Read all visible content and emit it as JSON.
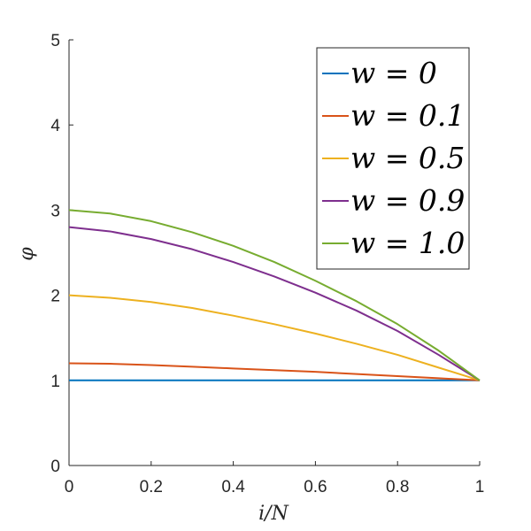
{
  "chart_data": {
    "type": "line",
    "xlabel": "i/N",
    "ylabel": "φ",
    "xlim": [
      0,
      1
    ],
    "ylim": [
      0,
      5
    ],
    "xticks": [
      0,
      0.2,
      0.4,
      0.6,
      0.8,
      1
    ],
    "yticks": [
      0,
      1,
      2,
      3,
      4,
      5
    ],
    "xtick_labels": [
      "0",
      "0.2",
      "0.4",
      "0.6",
      "0.8",
      "1"
    ],
    "ytick_labels": [
      "0",
      "1",
      "2",
      "3",
      "4",
      "5"
    ],
    "grid": false,
    "legend_position": "top-right",
    "x": [
      0,
      0.1,
      0.2,
      0.3,
      0.4,
      0.5,
      0.6,
      0.7,
      0.8,
      0.9,
      1.0
    ],
    "series": [
      {
        "name": "w = 0",
        "color": "#0072BD",
        "values": [
          1.0,
          1.0,
          1.0,
          1.0,
          1.0,
          1.0,
          1.0,
          1.0,
          1.0,
          1.0,
          1.0
        ]
      },
      {
        "name": "w = 0.1",
        "color": "#D95319",
        "values": [
          1.2,
          1.195,
          1.18,
          1.16,
          1.14,
          1.12,
          1.1,
          1.075,
          1.05,
          1.025,
          1.0
        ]
      },
      {
        "name": "w = 0.5",
        "color": "#EDB120",
        "values": [
          2.0,
          1.97,
          1.92,
          1.85,
          1.76,
          1.66,
          1.55,
          1.43,
          1.3,
          1.15,
          1.0
        ]
      },
      {
        "name": "w = 0.9",
        "color": "#7E2F8E",
        "values": [
          2.8,
          2.75,
          2.66,
          2.54,
          2.39,
          2.22,
          2.03,
          1.82,
          1.58,
          1.3,
          1.0
        ]
      },
      {
        "name": "w = 1.0",
        "color": "#77AC30",
        "values": [
          3.0,
          2.96,
          2.87,
          2.74,
          2.58,
          2.39,
          2.17,
          1.93,
          1.66,
          1.35,
          1.0
        ]
      }
    ]
  }
}
